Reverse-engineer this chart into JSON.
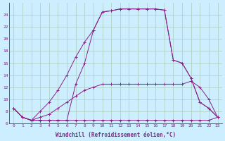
{
  "xlabel": "Windchill (Refroidissement éolien,°C)",
  "background_color": "#cceeff",
  "grid_color": "#aaccbb",
  "line_color": "#882288",
  "xlim": [
    -0.5,
    23.5
  ],
  "ylim": [
    6,
    26
  ],
  "xticks": [
    0,
    1,
    2,
    3,
    4,
    5,
    6,
    7,
    8,
    9,
    10,
    11,
    12,
    13,
    14,
    15,
    16,
    17,
    18,
    19,
    20,
    21,
    22,
    23
  ],
  "yticks": [
    6,
    8,
    10,
    12,
    14,
    16,
    18,
    20,
    22,
    24
  ],
  "line1_x": [
    0,
    1,
    2,
    3,
    4,
    5,
    6,
    7,
    8,
    9,
    10,
    11,
    12,
    13,
    14,
    15,
    16,
    17,
    18,
    19,
    20,
    21,
    22,
    23
  ],
  "line1_y": [
    8.5,
    7.0,
    6.5,
    6.5,
    6.5,
    6.5,
    6.5,
    6.5,
    6.5,
    6.5,
    6.5,
    6.5,
    6.5,
    6.5,
    6.5,
    6.5,
    6.5,
    6.5,
    6.5,
    6.5,
    6.5,
    6.5,
    6.5,
    7.0
  ],
  "line2_x": [
    0,
    1,
    2,
    3,
    4,
    5,
    6,
    7,
    8,
    9,
    10,
    11,
    12,
    13,
    14,
    15,
    16,
    17,
    18,
    19,
    20,
    21,
    22,
    23
  ],
  "line2_y": [
    8.5,
    7.0,
    6.5,
    7.0,
    7.5,
    8.5,
    9.5,
    10.5,
    11.5,
    12.0,
    12.5,
    12.5,
    12.5,
    12.5,
    12.5,
    12.5,
    12.5,
    12.5,
    12.5,
    12.5,
    13.0,
    12.0,
    10.0,
    7.0
  ],
  "line3_x": [
    0,
    1,
    2,
    3,
    4,
    5,
    6,
    7,
    8,
    9,
    10,
    11,
    12,
    13,
    14,
    15,
    16,
    17,
    18,
    19,
    20,
    21,
    22,
    23
  ],
  "line3_y": [
    8.5,
    7.0,
    6.5,
    8.0,
    9.5,
    11.5,
    14.0,
    17.0,
    19.5,
    21.5,
    24.5,
    24.7,
    25.0,
    25.0,
    25.0,
    25.0,
    25.0,
    24.8,
    16.5,
    16.0,
    13.5,
    9.5,
    8.5,
    7.0
  ],
  "line4_x": [
    0,
    1,
    2,
    3,
    4,
    5,
    6,
    7,
    8,
    9,
    10,
    11,
    12,
    13,
    14,
    15,
    16,
    17,
    18,
    19,
    20,
    21,
    22,
    23
  ],
  "line4_y": [
    8.5,
    7.0,
    6.5,
    6.5,
    6.5,
    6.5,
    6.5,
    12.5,
    16.0,
    21.5,
    24.5,
    24.7,
    25.0,
    25.0,
    25.0,
    25.0,
    25.0,
    24.8,
    16.5,
    16.0,
    13.5,
    9.5,
    8.5,
    7.0
  ]
}
